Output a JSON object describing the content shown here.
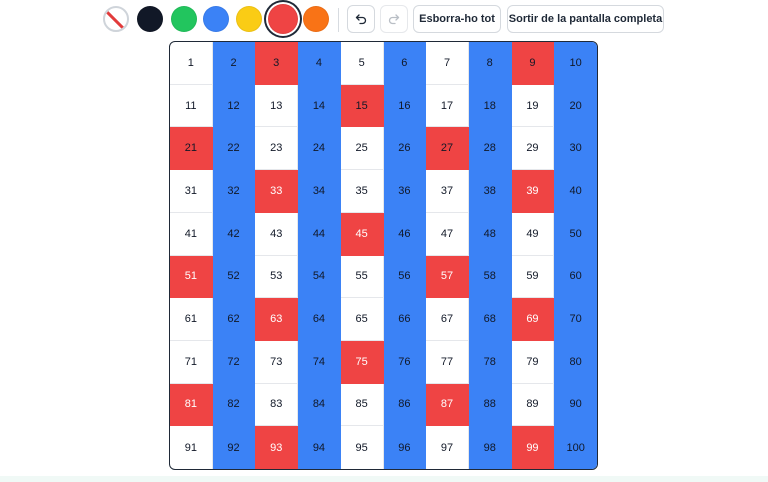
{
  "toolbar": {
    "swatches": [
      {
        "name": "eraser-swatch",
        "color": "eraser",
        "selected": false
      },
      {
        "name": "color-swatch-navy",
        "color": "#111827",
        "selected": false
      },
      {
        "name": "color-swatch-green",
        "color": "#22c55e",
        "selected": false
      },
      {
        "name": "color-swatch-blue",
        "color": "#3b82f6",
        "selected": false
      },
      {
        "name": "color-swatch-yellow",
        "color": "#facc15",
        "selected": false
      },
      {
        "name": "color-swatch-red",
        "color": "#ef4444",
        "selected": true
      },
      {
        "name": "color-swatch-orange",
        "color": "#f97316",
        "selected": false
      }
    ],
    "undo_icon": "undo-icon",
    "redo_icon": "redo-icon",
    "clear_label": "Esborra-ho tot",
    "exit_fullscreen_label": "Sortir de la pantalla completa"
  },
  "grid": {
    "colors": {
      "blue": "#3b82f6",
      "red": "#ef4444",
      "white": "#ffffff"
    },
    "cells": [
      {
        "n": "1",
        "c": "white"
      },
      {
        "n": "2",
        "c": "blue"
      },
      {
        "n": "3",
        "c": "red"
      },
      {
        "n": "4",
        "c": "blue"
      },
      {
        "n": "5",
        "c": "white"
      },
      {
        "n": "6",
        "c": "blue"
      },
      {
        "n": "7",
        "c": "white"
      },
      {
        "n": "8",
        "c": "blue"
      },
      {
        "n": "9",
        "c": "red"
      },
      {
        "n": "10",
        "c": "blue"
      },
      {
        "n": "11",
        "c": "white"
      },
      {
        "n": "12",
        "c": "blue"
      },
      {
        "n": "13",
        "c": "white"
      },
      {
        "n": "14",
        "c": "blue"
      },
      {
        "n": "15",
        "c": "red"
      },
      {
        "n": "16",
        "c": "blue"
      },
      {
        "n": "17",
        "c": "white"
      },
      {
        "n": "18",
        "c": "blue"
      },
      {
        "n": "19",
        "c": "white"
      },
      {
        "n": "20",
        "c": "blue"
      },
      {
        "n": "21",
        "c": "red"
      },
      {
        "n": "22",
        "c": "blue"
      },
      {
        "n": "23",
        "c": "white"
      },
      {
        "n": "24",
        "c": "blue"
      },
      {
        "n": "25",
        "c": "white"
      },
      {
        "n": "26",
        "c": "blue"
      },
      {
        "n": "27",
        "c": "red"
      },
      {
        "n": "28",
        "c": "blue"
      },
      {
        "n": "29",
        "c": "white"
      },
      {
        "n": "30",
        "c": "blue"
      },
      {
        "n": "31",
        "c": "white"
      },
      {
        "n": "32",
        "c": "blue"
      },
      {
        "n": "33",
        "c": "red",
        "t": "light"
      },
      {
        "n": "34",
        "c": "blue"
      },
      {
        "n": "35",
        "c": "white"
      },
      {
        "n": "36",
        "c": "blue"
      },
      {
        "n": "37",
        "c": "white"
      },
      {
        "n": "38",
        "c": "blue"
      },
      {
        "n": "39",
        "c": "red",
        "t": "light"
      },
      {
        "n": "40",
        "c": "blue"
      },
      {
        "n": "41",
        "c": "white"
      },
      {
        "n": "42",
        "c": "blue"
      },
      {
        "n": "43",
        "c": "white"
      },
      {
        "n": "44",
        "c": "blue"
      },
      {
        "n": "45",
        "c": "red",
        "t": "light"
      },
      {
        "n": "46",
        "c": "blue"
      },
      {
        "n": "47",
        "c": "white"
      },
      {
        "n": "48",
        "c": "blue"
      },
      {
        "n": "49",
        "c": "white"
      },
      {
        "n": "50",
        "c": "blue"
      },
      {
        "n": "51",
        "c": "red",
        "t": "light"
      },
      {
        "n": "52",
        "c": "blue"
      },
      {
        "n": "53",
        "c": "white"
      },
      {
        "n": "54",
        "c": "blue"
      },
      {
        "n": "55",
        "c": "white"
      },
      {
        "n": "56",
        "c": "blue"
      },
      {
        "n": "57",
        "c": "red",
        "t": "light"
      },
      {
        "n": "58",
        "c": "blue"
      },
      {
        "n": "59",
        "c": "white"
      },
      {
        "n": "60",
        "c": "blue"
      },
      {
        "n": "61",
        "c": "white"
      },
      {
        "n": "62",
        "c": "blue"
      },
      {
        "n": "63",
        "c": "red",
        "t": "light"
      },
      {
        "n": "64",
        "c": "blue"
      },
      {
        "n": "65",
        "c": "white"
      },
      {
        "n": "66",
        "c": "blue"
      },
      {
        "n": "67",
        "c": "white"
      },
      {
        "n": "68",
        "c": "blue"
      },
      {
        "n": "69",
        "c": "red",
        "t": "light"
      },
      {
        "n": "70",
        "c": "blue"
      },
      {
        "n": "71",
        "c": "white"
      },
      {
        "n": "72",
        "c": "blue"
      },
      {
        "n": "73",
        "c": "white"
      },
      {
        "n": "74",
        "c": "blue"
      },
      {
        "n": "75",
        "c": "red",
        "t": "light"
      },
      {
        "n": "76",
        "c": "blue"
      },
      {
        "n": "77",
        "c": "white"
      },
      {
        "n": "78",
        "c": "blue"
      },
      {
        "n": "79",
        "c": "white"
      },
      {
        "n": "80",
        "c": "blue"
      },
      {
        "n": "81",
        "c": "red",
        "t": "light"
      },
      {
        "n": "82",
        "c": "blue"
      },
      {
        "n": "83",
        "c": "white"
      },
      {
        "n": "84",
        "c": "blue"
      },
      {
        "n": "85",
        "c": "white"
      },
      {
        "n": "86",
        "c": "blue"
      },
      {
        "n": "87",
        "c": "red",
        "t": "light"
      },
      {
        "n": "88",
        "c": "blue"
      },
      {
        "n": "89",
        "c": "white"
      },
      {
        "n": "90",
        "c": "blue"
      },
      {
        "n": "91",
        "c": "white"
      },
      {
        "n": "92",
        "c": "blue"
      },
      {
        "n": "93",
        "c": "red",
        "t": "light"
      },
      {
        "n": "94",
        "c": "blue"
      },
      {
        "n": "95",
        "c": "white"
      },
      {
        "n": "96",
        "c": "blue"
      },
      {
        "n": "97",
        "c": "white"
      },
      {
        "n": "98",
        "c": "blue"
      },
      {
        "n": "99",
        "c": "red",
        "t": "light"
      },
      {
        "n": "100",
        "c": "blue"
      }
    ]
  }
}
